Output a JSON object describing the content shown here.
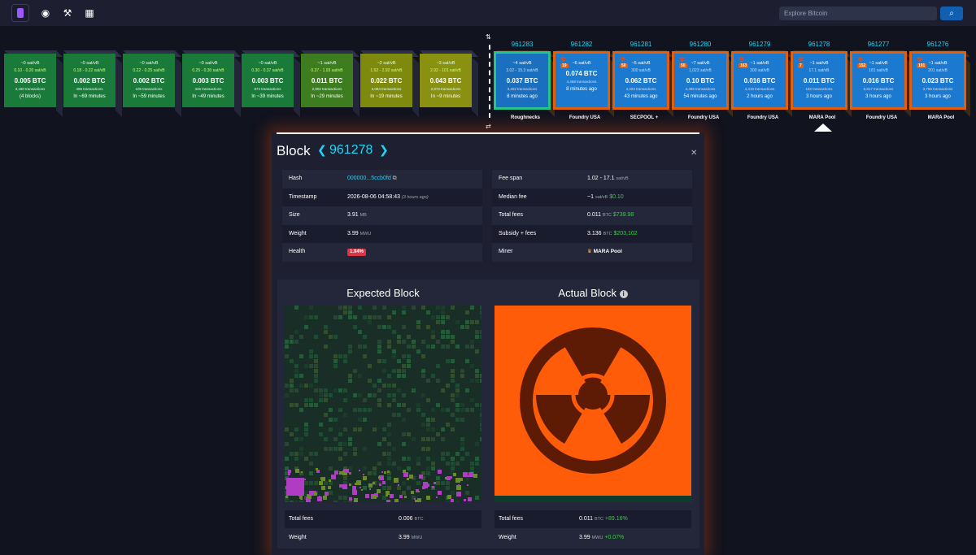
{
  "nav": {
    "search_placeholder": "Explore Bitcoin",
    "search_icon": "search-icon"
  },
  "mempool_blocks": [
    {
      "fee": "~0 sat/vB",
      "range": "0.10 - 0.20 sat/vB",
      "btc": "0.005 BTC",
      "tx": "3,180 transactions",
      "eta": "(4 blocks)",
      "color": "#1a7a3a"
    },
    {
      "fee": "~0 sat/vB",
      "range": "0.18 - 0.22 sat/vB",
      "btc": "0.002 BTC",
      "tx": "496 transactions",
      "eta": "In ~69 minutes",
      "color": "#1a7a3a"
    },
    {
      "fee": "~0 sat/vB",
      "range": "0.22 - 0.25 sat/vB",
      "btc": "0.002 BTC",
      "tx": "105 transactions",
      "eta": "In ~59 minutes",
      "color": "#1a7a3a"
    },
    {
      "fee": "~0 sat/vB",
      "range": "0.25 - 0.30 sat/vB",
      "btc": "0.003 BTC",
      "tx": "346 transactions",
      "eta": "In ~49 minutes",
      "color": "#1a7a3a"
    },
    {
      "fee": "~0 sat/vB",
      "range": "0.30 - 0.37 sat/vB",
      "btc": "0.003 BTC",
      "tx": "874 transactions",
      "eta": "In ~39 minutes",
      "color": "#1a7a3a"
    },
    {
      "fee": "~1 sat/vB",
      "range": "0.37 - 1.93 sat/vB",
      "btc": "0.011 BTC",
      "tx": "2,802 transactions",
      "eta": "In ~29 minutes",
      "color": "#3d7d20"
    },
    {
      "fee": "~2 sat/vB",
      "range": "1.92 - 2.92 sat/vB",
      "btc": "0.022 BTC",
      "tx": "3,084 transactions",
      "eta": "In ~19 minutes",
      "color": "#7d8a0e"
    },
    {
      "fee": "~3 sat/vB",
      "range": "2.92 - 101 sat/vB",
      "btc": "0.043 BTC",
      "tx": "2,873 transactions",
      "eta": "In ~9 minutes",
      "color": "#8a9010"
    }
  ],
  "mined_blocks": [
    {
      "height": "961283",
      "fee": "~4 sat/vB",
      "range": "3.02 - 15.3 sat/vB",
      "btc": "0.037 BTC",
      "tx": "3,202 transactions",
      "age": "8 minutes ago",
      "pool": "Roughnecks",
      "badge": ""
    },
    {
      "height": "961282",
      "fee": "~6 sat/vB",
      "range": "",
      "btc": "0.074 BTC",
      "tx": "4,468 transactions",
      "age": "8 minutes ago",
      "pool": "Foundry USA",
      "badge": "19"
    },
    {
      "height": "961281",
      "fee": "~5 sat/vB",
      "range": "300 sat/vB",
      "btc": "0.062 BTC",
      "tx": "4,204 transactions",
      "age": "43 minutes ago",
      "pool": "SECPOOL +",
      "badge": "50"
    },
    {
      "height": "961280",
      "fee": "~7 sat/vB",
      "range": "1,023 sat/vB",
      "btc": "0.10 BTC",
      "tx": "4,495 transactions",
      "age": "54 minutes ago",
      "pool": "Foundry USA",
      "badge": "50"
    },
    {
      "height": "961279",
      "fee": "~1 sat/vB",
      "range": "300 sat/vB",
      "btc": "0.016 BTC",
      "tx": "4,419 transactions",
      "age": "2 hours ago",
      "pool": "Foundry USA",
      "badge": "163"
    },
    {
      "height": "961278",
      "fee": "~1 sat/vB",
      "range": "17.1 sat/vB",
      "btc": "0.011 BTC",
      "tx": "192 transactions",
      "age": "3 hours ago",
      "pool": "MARA Pool",
      "badge": "7"
    },
    {
      "height": "961277",
      "fee": "~1 sat/vB",
      "range": "181 sat/vB",
      "btc": "0.016 BTC",
      "tx": "5,817 transactions",
      "age": "3 hours ago",
      "pool": "Foundry USA",
      "badge": "152"
    },
    {
      "height": "961276",
      "fee": "~1 sat/vB",
      "range": "201 sat/vB",
      "btc": "0.023 BTC",
      "tx": "3,755 transactions",
      "age": "3 hours ago",
      "pool": "MARA Pool",
      "badge": "191"
    }
  ],
  "block": {
    "title": "Block",
    "height": "961278",
    "hash": "000000...5ccb0fd",
    "timestamp": "2026-08-06 04:58:43",
    "timestamp_rel": "(3 hours ago)",
    "size": "3.91",
    "size_unit": "MB",
    "weight": "3.99",
    "weight_unit": "MWU",
    "health": "1.94%",
    "fee_span": "1.02 - 17.1",
    "fee_span_unit": "sat/vB",
    "median_fee": "~1",
    "median_fee_unit": "sat/vB",
    "median_fee_usd": "$0.10",
    "total_fees": "0.011",
    "total_fees_unit": "BTC",
    "total_fees_usd": "$739.98",
    "subsidy_fees": "3.136",
    "subsidy_fees_unit": "BTC",
    "subsidy_fees_usd": "$203,102",
    "miner": "MARA Pool",
    "labels": {
      "hash": "Hash",
      "timestamp": "Timestamp",
      "size": "Size",
      "weight": "Weight",
      "health": "Health",
      "fee_span": "Fee span",
      "median_fee": "Median fee",
      "total_fees": "Total fees",
      "subsidy_fees": "Subsidy + fees",
      "miner": "Miner"
    }
  },
  "visual": {
    "expected_title": "Expected Block",
    "actual_title": "Actual Block",
    "expected": {
      "total_fees_label": "Total fees",
      "total_fees": "0.006",
      "total_fees_unit": "BTC",
      "weight_label": "Weight",
      "weight": "3.99",
      "weight_unit": "MWU"
    },
    "actual": {
      "total_fees_label": "Total fees",
      "total_fees": "0.011",
      "total_fees_unit": "BTC",
      "total_fees_delta": "+89.16%",
      "weight_label": "Weight",
      "weight": "3.99",
      "weight_unit": "MWU",
      "weight_delta": "+0.07%"
    }
  }
}
